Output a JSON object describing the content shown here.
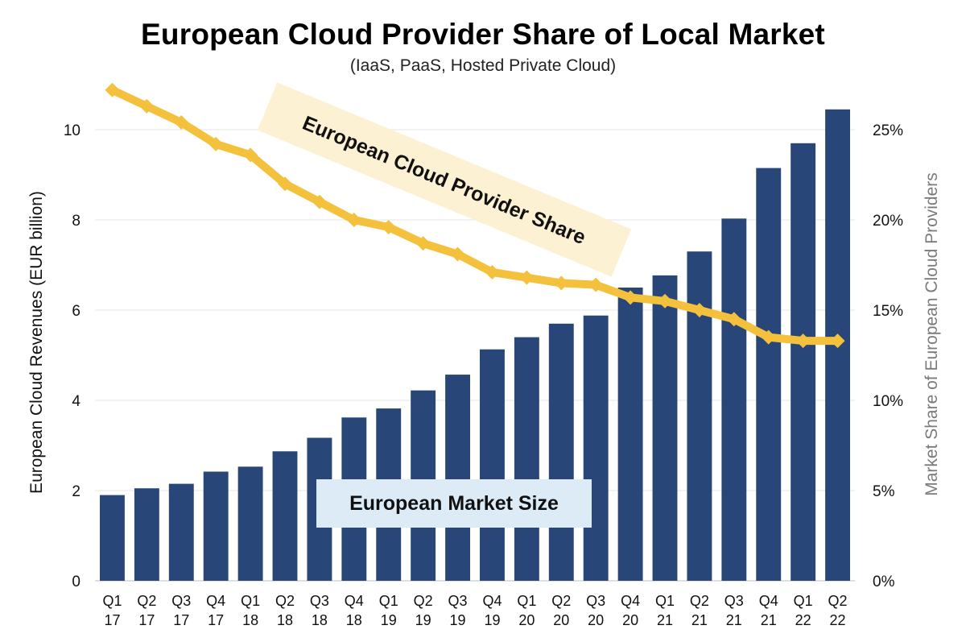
{
  "chart_data": {
    "type": "bar",
    "title": "European Cloud Provider Share of Local Market",
    "subtitle": "(IaaS, PaaS, Hosted Private Cloud)",
    "categories": [
      "Q1 17",
      "Q2 17",
      "Q3 17",
      "Q4 17",
      "Q1 18",
      "Q2 18",
      "Q3 18",
      "Q4 18",
      "Q1 19",
      "Q2 19",
      "Q3 19",
      "Q4 19",
      "Q1 20",
      "Q2 20",
      "Q3 20",
      "Q4 20",
      "Q1 21",
      "Q2 21",
      "Q3 21",
      "Q4 21",
      "Q1 22",
      "Q2 22"
    ],
    "category_lines": [
      [
        "Q1",
        "17"
      ],
      [
        "Q2",
        "17"
      ],
      [
        "Q3",
        "17"
      ],
      [
        "Q4",
        "17"
      ],
      [
        "Q1",
        "18"
      ],
      [
        "Q2",
        "18"
      ],
      [
        "Q3",
        "18"
      ],
      [
        "Q4",
        "18"
      ],
      [
        "Q1",
        "19"
      ],
      [
        "Q2",
        "19"
      ],
      [
        "Q3",
        "19"
      ],
      [
        "Q4",
        "19"
      ],
      [
        "Q1",
        "20"
      ],
      [
        "Q2",
        "20"
      ],
      [
        "Q3",
        "20"
      ],
      [
        "Q4",
        "20"
      ],
      [
        "Q1",
        "21"
      ],
      [
        "Q2",
        "21"
      ],
      [
        "Q3",
        "21"
      ],
      [
        "Q4",
        "21"
      ],
      [
        "Q1",
        "22"
      ],
      [
        "Q2",
        "22"
      ]
    ],
    "ylabel": "European Cloud Revenues (EUR billion)",
    "ylabel_right": "Market Share of European Cloud Providers",
    "ylim": [
      0,
      11
    ],
    "ylim_right": [
      0,
      0.275
    ],
    "yticks": [
      "0",
      "2",
      "4",
      "6",
      "8",
      "10"
    ],
    "yticks_right": [
      "0%",
      "5%",
      "10%",
      "15%",
      "20%",
      "25%"
    ],
    "grid": "horizontal",
    "series": [
      {
        "name": "European Market Size",
        "type": "bar",
        "axis": "left",
        "color": "#284677",
        "values": [
          1.9,
          2.05,
          2.15,
          2.42,
          2.53,
          2.87,
          3.17,
          3.62,
          3.82,
          4.22,
          4.57,
          5.13,
          5.4,
          5.7,
          5.88,
          6.5,
          6.77,
          7.3,
          8.03,
          9.15,
          9.7,
          10.45
        ]
      },
      {
        "name": "European Cloud Provider Share",
        "type": "line",
        "axis": "right",
        "color": "#F4C13D",
        "values": [
          0.272,
          0.263,
          0.254,
          0.242,
          0.236,
          0.22,
          0.21,
          0.2,
          0.196,
          0.187,
          0.181,
          0.171,
          0.168,
          0.165,
          0.164,
          0.157,
          0.155,
          0.15,
          0.145,
          0.135,
          0.133,
          0.133
        ]
      }
    ],
    "annotations": [
      {
        "text": "European Cloud Provider Share",
        "background": "#FCF1D2"
      },
      {
        "text": "European Market Size",
        "background": "#DDEBF7"
      }
    ]
  }
}
